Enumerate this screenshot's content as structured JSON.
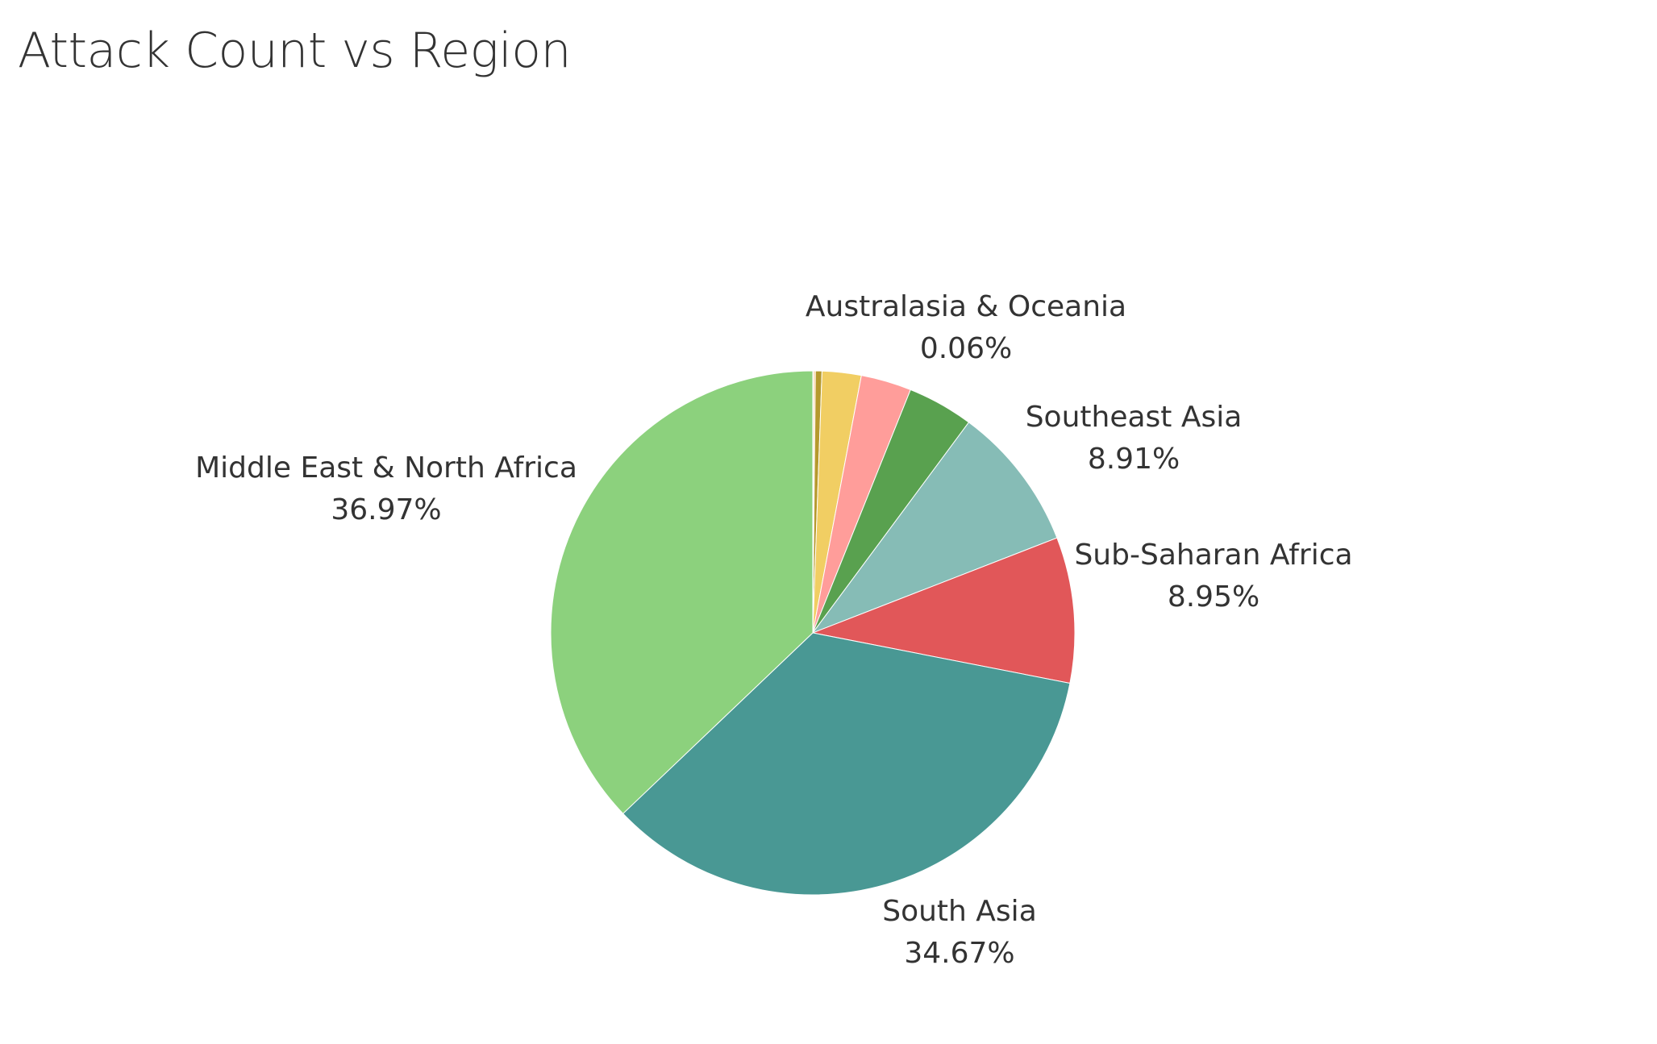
{
  "title": "Attack Count vs Region",
  "chart_data": {
    "type": "pie",
    "title": "Attack Count vs Region",
    "start_angle": "12 o'clock",
    "direction": "clockwise",
    "slices": [
      {
        "name": "",
        "value": 0.06,
        "color": "#f28e2b"
      },
      {
        "name": "",
        "value": 0.1,
        "color": "#ffbe7d"
      },
      {
        "name": "",
        "value": 0.4,
        "color": "#b6992d"
      },
      {
        "name": "",
        "value": 2.4,
        "color": "#f1ce63"
      },
      {
        "name": "",
        "value": 3.1,
        "color": "#ff9d9a"
      },
      {
        "name": "",
        "value": 4.05,
        "color": "#59a14f"
      },
      {
        "name": "Southeast Asia",
        "value": 8.91,
        "label_value": "8.91%",
        "color": "#86bcb6"
      },
      {
        "name": "Sub-Saharan Africa",
        "value": 8.95,
        "label_value": "8.95%",
        "color": "#e15759"
      },
      {
        "name": "South Asia",
        "value": 34.67,
        "label_value": "34.67%",
        "color": "#499894"
      },
      {
        "name": "Middle East & North Africa",
        "value": 36.97,
        "label_value": "36.97%",
        "color": "#8cd17d"
      }
    ],
    "labels": [
      {
        "name": "Australasia & Oceania",
        "value": "0.06%"
      },
      {
        "name": "Southeast Asia",
        "value": "8.91%"
      },
      {
        "name": "Sub-Saharan Africa",
        "value": "8.95%"
      },
      {
        "name": "South Asia",
        "value": "34.67%"
      },
      {
        "name": "Middle East & North Africa",
        "value": "36.97%"
      }
    ]
  }
}
